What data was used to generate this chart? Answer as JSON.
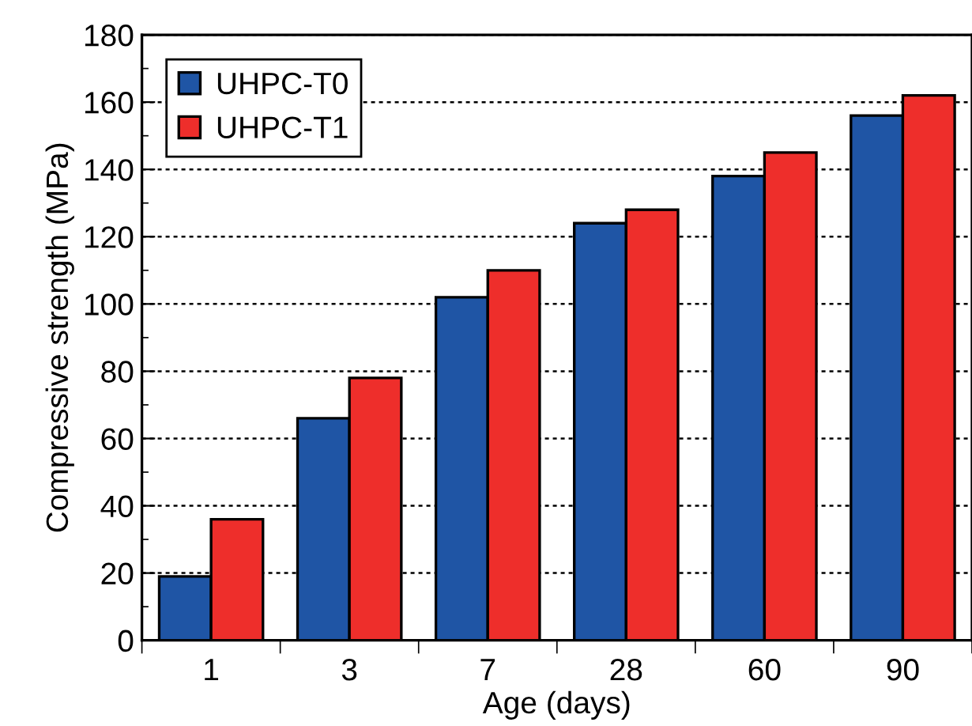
{
  "chart_data": {
    "type": "bar",
    "xlabel": "Age (days)",
    "ylabel": "Compressive strength (MPa)",
    "categories": [
      "1",
      "3",
      "7",
      "28",
      "60",
      "90"
    ],
    "series": [
      {
        "name": "UHPC-T0",
        "color": "#1f55a5",
        "values": [
          19,
          66,
          102,
          124,
          138,
          156
        ]
      },
      {
        "name": "UHPC-T1",
        "color": "#ee2e2b",
        "values": [
          36,
          78,
          110,
          128,
          145,
          162
        ]
      }
    ],
    "ylim": [
      0,
      180
    ],
    "yticks": [
      0,
      20,
      40,
      60,
      80,
      100,
      120,
      140,
      160,
      180
    ],
    "grid": "y",
    "legend": "top left"
  }
}
